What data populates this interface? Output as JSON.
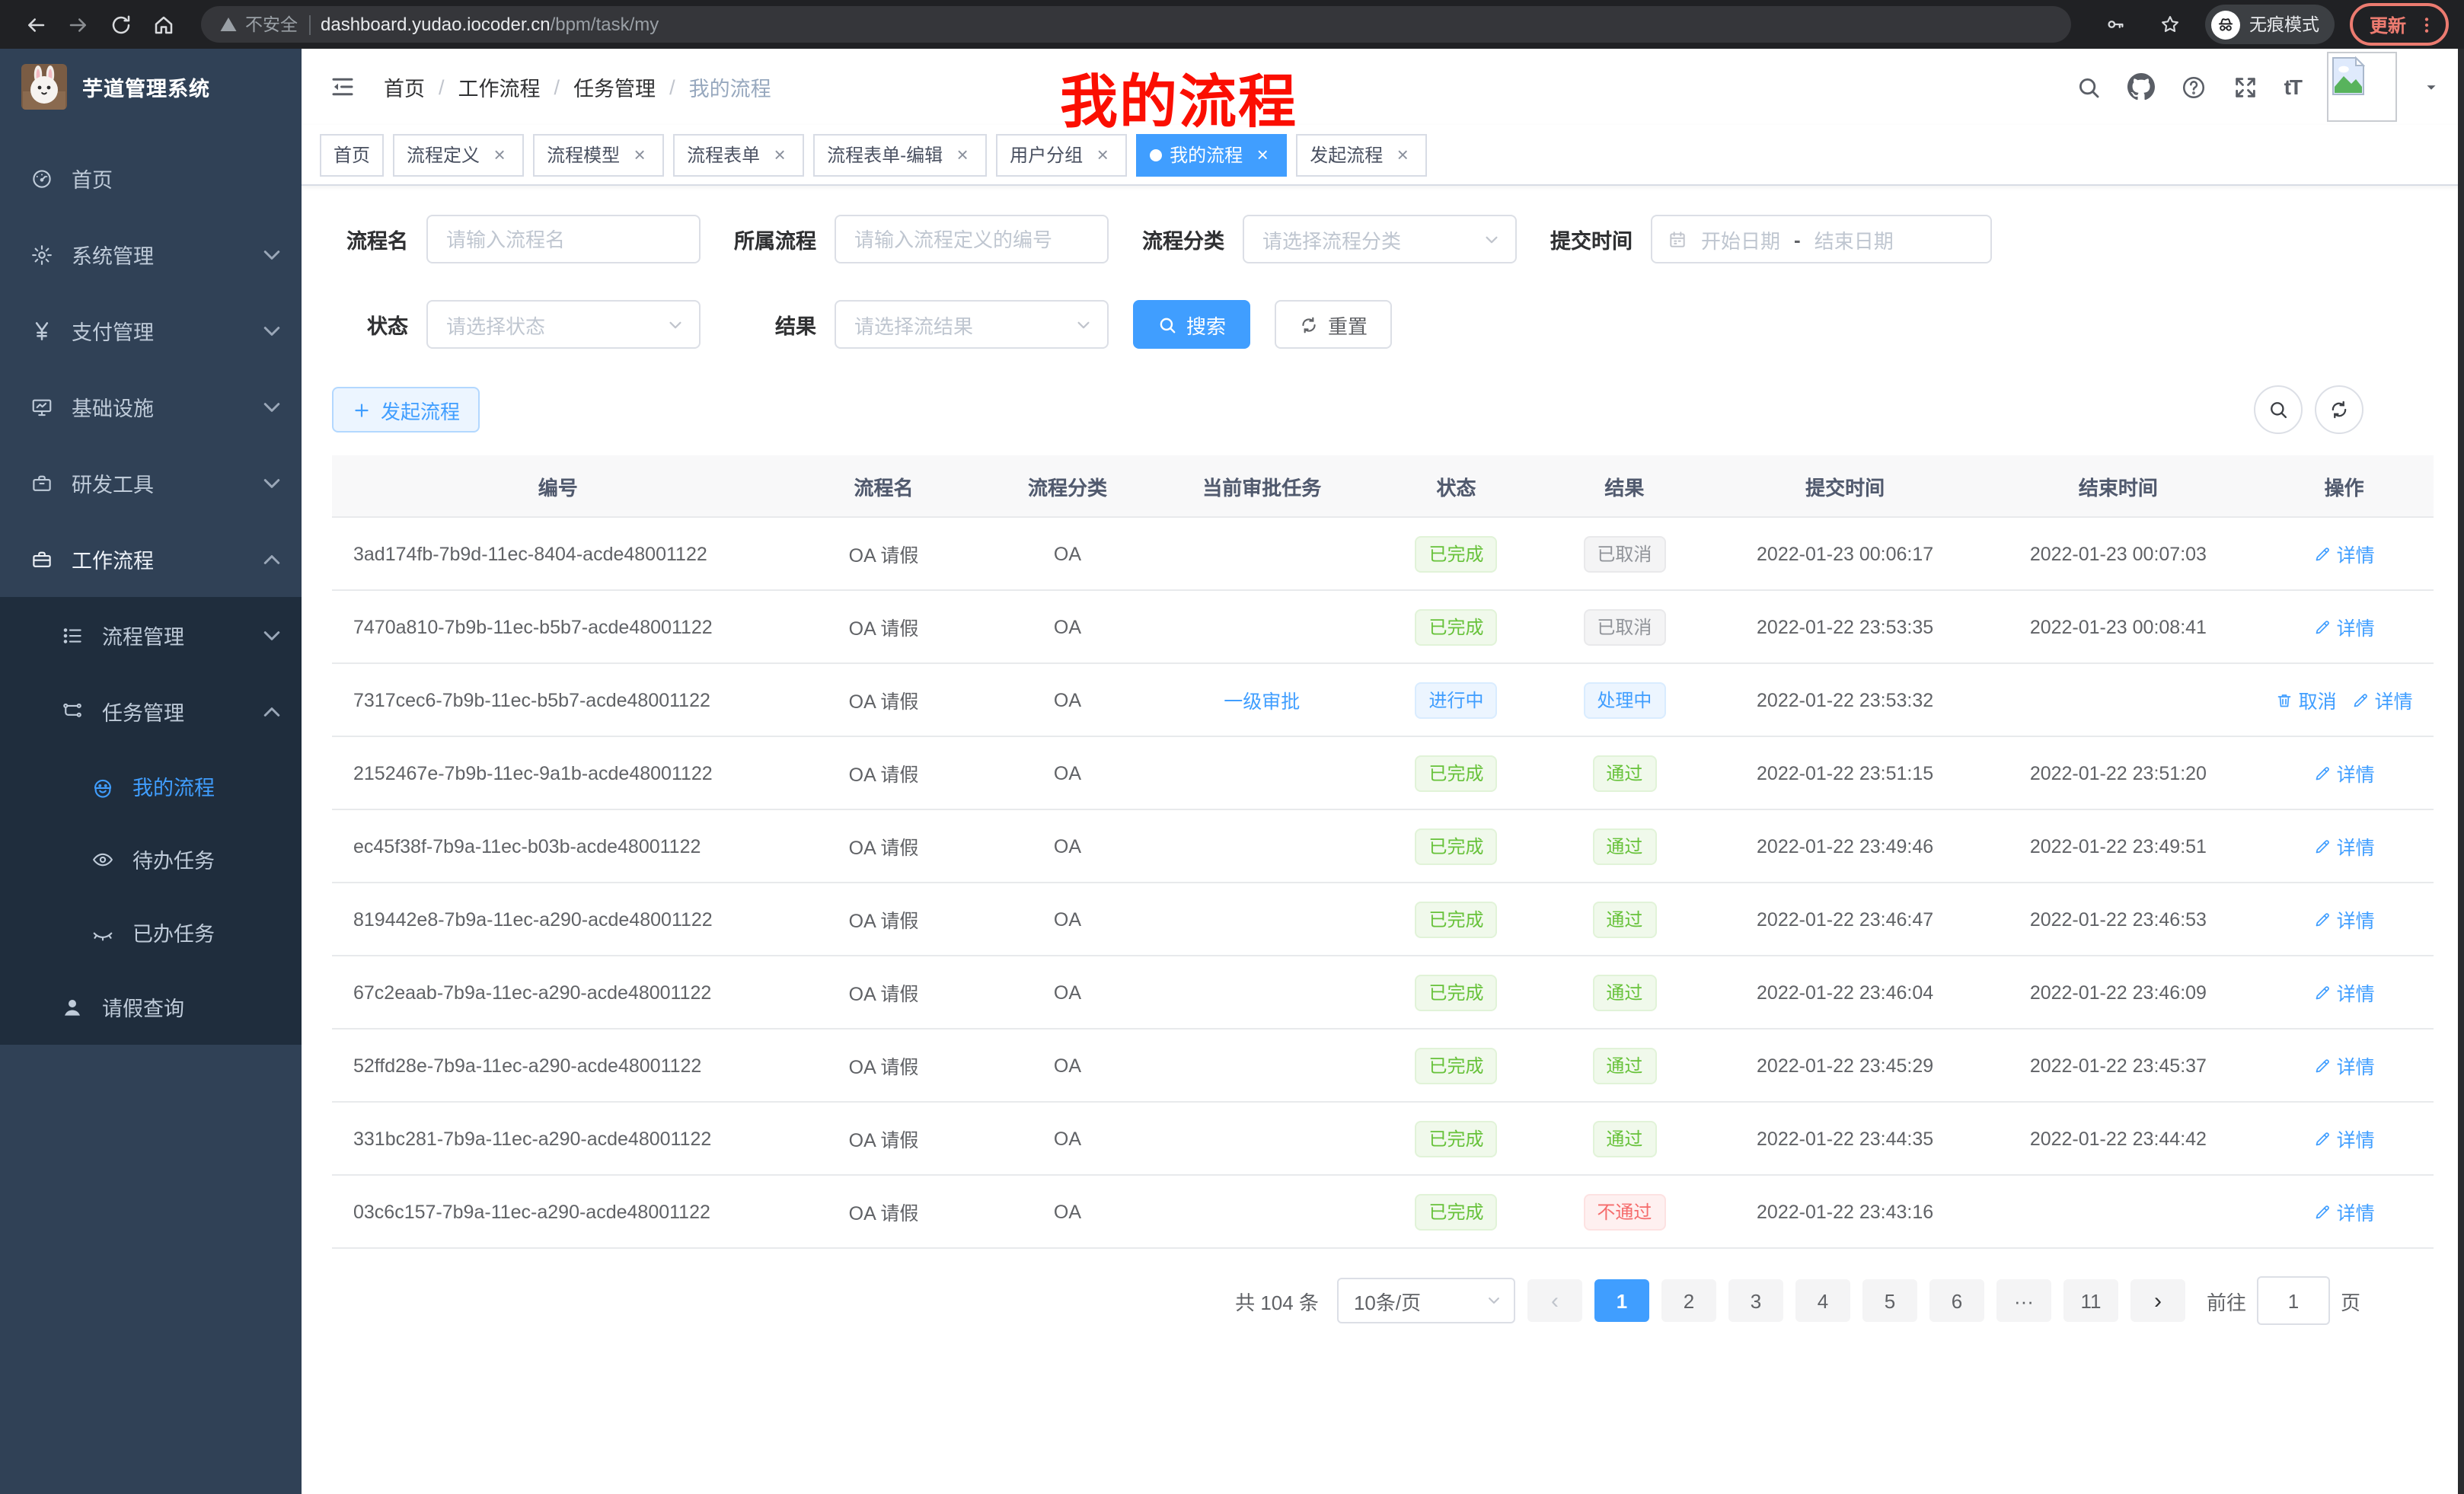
{
  "colors": {
    "accent": "#409eff",
    "sidebar_bg": "#304156",
    "submenu_bg": "#1f2d3d",
    "success": "#67c23a",
    "danger": "#f56c6c",
    "info": "#909399",
    "chrome_bg": "#202124",
    "update_accent": "#ec7b70"
  },
  "browser": {
    "security_warning": "不安全",
    "url_host": "dashboard.yudao.iocoder.cn",
    "url_path": "/bpm/task/my",
    "incognito_label": "无痕模式",
    "update_label": "更新"
  },
  "sidebar": {
    "app_title": "芋道管理系统",
    "items": [
      {
        "name": "home",
        "label": "首页",
        "icon": "dashboard-icon",
        "level": 1
      },
      {
        "name": "system-management",
        "label": "系统管理",
        "icon": "gear-icon",
        "level": 1,
        "chevron": "down"
      },
      {
        "name": "payment-management",
        "label": "支付管理",
        "icon": "yen-icon",
        "level": 1,
        "chevron": "down"
      },
      {
        "name": "infrastructure",
        "label": "基础设施",
        "icon": "monitor-icon",
        "level": 1,
        "chevron": "down"
      },
      {
        "name": "dev-tools",
        "label": "研发工具",
        "icon": "toolbox-icon",
        "level": 1,
        "chevron": "down"
      },
      {
        "name": "workflow",
        "label": "工作流程",
        "icon": "briefcase-icon",
        "level": 1,
        "chevron": "up",
        "bright": true
      },
      {
        "name": "process-management",
        "label": "流程管理",
        "icon": "list-icon",
        "level": 2,
        "chevron": "down",
        "submenu": true
      },
      {
        "name": "task-management",
        "label": "任务管理",
        "icon": "workflow-icon",
        "level": 2,
        "chevron": "up",
        "submenu": true
      },
      {
        "name": "my-process",
        "label": "我的流程",
        "icon": "robot-icon",
        "level": 3,
        "submenu": true,
        "active": true
      },
      {
        "name": "todo-task",
        "label": "待办任务",
        "icon": "eye-icon",
        "level": 3,
        "submenu": true
      },
      {
        "name": "done-task",
        "label": "已办任务",
        "icon": "eye-closed-icon",
        "level": 3,
        "submenu": true
      },
      {
        "name": "leave-query",
        "label": "请假查询",
        "icon": "user-icon",
        "level": 2,
        "submenu": true
      }
    ]
  },
  "header": {
    "breadcrumb": [
      "首页",
      "工作流程",
      "任务管理",
      "我的流程"
    ],
    "separator": "/",
    "annotation": "我的流程",
    "font_size_icon_text": "tT"
  },
  "tabs": [
    {
      "name": "home",
      "label": "首页",
      "closable": false,
      "active": false
    },
    {
      "name": "process-definition",
      "label": "流程定义",
      "closable": true,
      "active": false
    },
    {
      "name": "process-model",
      "label": "流程模型",
      "closable": true,
      "active": false
    },
    {
      "name": "process-form",
      "label": "流程表单",
      "closable": true,
      "active": false
    },
    {
      "name": "process-form-edit",
      "label": "流程表单-编辑",
      "closable": true,
      "active": false
    },
    {
      "name": "user-group",
      "label": "用户分组",
      "closable": true,
      "active": false
    },
    {
      "name": "my-process",
      "label": "我的流程",
      "closable": true,
      "active": true
    },
    {
      "name": "start-process",
      "label": "发起流程",
      "closable": true,
      "active": false
    }
  ],
  "filters": {
    "process_name_label": "流程名",
    "process_name_placeholder": "请输入流程名",
    "parent_process_label": "所属流程",
    "parent_process_placeholder": "请输入流程定义的编号",
    "category_label": "流程分类",
    "category_placeholder": "请选择流程分类",
    "submit_time_label": "提交时间",
    "start_date_placeholder": "开始日期",
    "date_separator": "-",
    "end_date_placeholder": "结束日期",
    "status_label": "状态",
    "status_placeholder": "请选择状态",
    "result_label": "结果",
    "result_placeholder": "请选择流结果",
    "search_label": "搜索",
    "reset_label": "重置"
  },
  "toolbar": {
    "create_label": "发起流程"
  },
  "table": {
    "columns": [
      "编号",
      "流程名",
      "流程分类",
      "当前审批任务",
      "状态",
      "结果",
      "提交时间",
      "结束时间",
      "操作"
    ],
    "action_labels": {
      "detail": "详情",
      "cancel": "取消"
    },
    "rows": [
      {
        "id": "3ad174fb-7b9d-11ec-8404-acde48001122",
        "name": "OA 请假",
        "category": "OA",
        "task": "",
        "status": "已完成",
        "status_type": "success",
        "result": "已取消",
        "result_type": "info",
        "submit": "2022-01-23 00:06:17",
        "end": "2022-01-23 00:07:03",
        "actions": [
          "detail"
        ]
      },
      {
        "id": "7470a810-7b9b-11ec-b5b7-acde48001122",
        "name": "OA 请假",
        "category": "OA",
        "task": "",
        "status": "已完成",
        "status_type": "success",
        "result": "已取消",
        "result_type": "info",
        "submit": "2022-01-22 23:53:35",
        "end": "2022-01-23 00:08:41",
        "actions": [
          "detail"
        ]
      },
      {
        "id": "7317cec6-7b9b-11ec-b5b7-acde48001122",
        "name": "OA 请假",
        "category": "OA",
        "task": "一级审批",
        "status": "进行中",
        "status_type": "primary",
        "result": "处理中",
        "result_type": "primary",
        "submit": "2022-01-22 23:53:32",
        "end": "",
        "actions": [
          "cancel",
          "detail"
        ]
      },
      {
        "id": "2152467e-7b9b-11ec-9a1b-acde48001122",
        "name": "OA 请假",
        "category": "OA",
        "task": "",
        "status": "已完成",
        "status_type": "success",
        "result": "通过",
        "result_type": "success",
        "submit": "2022-01-22 23:51:15",
        "end": "2022-01-22 23:51:20",
        "actions": [
          "detail"
        ]
      },
      {
        "id": "ec45f38f-7b9a-11ec-b03b-acde48001122",
        "name": "OA 请假",
        "category": "OA",
        "task": "",
        "status": "已完成",
        "status_type": "success",
        "result": "通过",
        "result_type": "success",
        "submit": "2022-01-22 23:49:46",
        "end": "2022-01-22 23:49:51",
        "actions": [
          "detail"
        ]
      },
      {
        "id": "819442e8-7b9a-11ec-a290-acde48001122",
        "name": "OA 请假",
        "category": "OA",
        "task": "",
        "status": "已完成",
        "status_type": "success",
        "result": "通过",
        "result_type": "success",
        "submit": "2022-01-22 23:46:47",
        "end": "2022-01-22 23:46:53",
        "actions": [
          "detail"
        ]
      },
      {
        "id": "67c2eaab-7b9a-11ec-a290-acde48001122",
        "name": "OA 请假",
        "category": "OA",
        "task": "",
        "status": "已完成",
        "status_type": "success",
        "result": "通过",
        "result_type": "success",
        "submit": "2022-01-22 23:46:04",
        "end": "2022-01-22 23:46:09",
        "actions": [
          "detail"
        ]
      },
      {
        "id": "52ffd28e-7b9a-11ec-a290-acde48001122",
        "name": "OA 请假",
        "category": "OA",
        "task": "",
        "status": "已完成",
        "status_type": "success",
        "result": "通过",
        "result_type": "success",
        "submit": "2022-01-22 23:45:29",
        "end": "2022-01-22 23:45:37",
        "actions": [
          "detail"
        ]
      },
      {
        "id": "331bc281-7b9a-11ec-a290-acde48001122",
        "name": "OA 请假",
        "category": "OA",
        "task": "",
        "status": "已完成",
        "status_type": "success",
        "result": "通过",
        "result_type": "success",
        "submit": "2022-01-22 23:44:35",
        "end": "2022-01-22 23:44:42",
        "actions": [
          "detail"
        ]
      },
      {
        "id": "03c6c157-7b9a-11ec-a290-acde48001122",
        "name": "OA 请假",
        "category": "OA",
        "task": "",
        "status": "已完成",
        "status_type": "success",
        "result": "不通过",
        "result_type": "danger",
        "submit": "2022-01-22 23:43:16",
        "end": "",
        "actions": [
          "detail"
        ]
      }
    ]
  },
  "pagination": {
    "total_text": "共 104 条",
    "page_size": "10条/页",
    "pages": [
      "1",
      "2",
      "3",
      "4",
      "5",
      "6",
      "···",
      "11"
    ],
    "active_page": "1",
    "goto_label": "前往",
    "goto_value": "1",
    "goto_suffix": "页"
  }
}
